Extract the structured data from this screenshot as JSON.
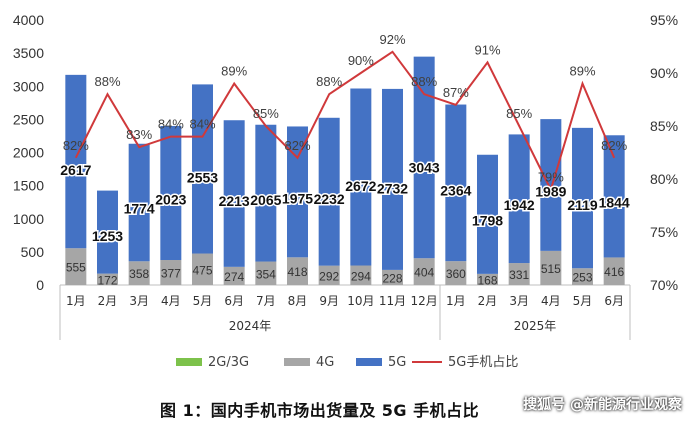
{
  "caption": "图 1：国内手机市场出货量及 5G 手机占比",
  "watermark": "搜狐号 @新能源行业观察",
  "chart_data": {
    "type": "bar",
    "categories": [
      "1月",
      "2月",
      "3月",
      "4月",
      "5月",
      "6月",
      "7月",
      "8月",
      "9月",
      "10月",
      "11月",
      "12月",
      "1月",
      "2月",
      "3月",
      "4月",
      "5月",
      "6月"
    ],
    "year_groups": [
      {
        "label": "2024年",
        "start": 0,
        "end": 11
      },
      {
        "label": "2025年",
        "start": 12,
        "end": 17
      }
    ],
    "series": [
      {
        "name": "2G/3G",
        "type": "bar",
        "color": "#7dc24b",
        "values": [
          0,
          0,
          0,
          0,
          0,
          0,
          0,
          0,
          0,
          0,
          0,
          0,
          0,
          0,
          0,
          0,
          0,
          0
        ]
      },
      {
        "name": "4G",
        "type": "bar",
        "color": "#a6a6a6",
        "values": [
          555,
          172,
          358,
          377,
          475,
          274,
          354,
          418,
          292,
          294,
          228,
          404,
          360,
          168,
          331,
          515,
          253,
          416
        ]
      },
      {
        "name": "5G",
        "type": "bar",
        "color": "#4472c4",
        "values": [
          2617,
          1253,
          1774,
          2023,
          2553,
          2213,
          2065,
          1975,
          2232,
          2672,
          2732,
          3043,
          2364,
          1798,
          1942,
          1989,
          2119,
          1844
        ]
      },
      {
        "name": "5G手机占比",
        "type": "line",
        "color": "#d0393b",
        "axis": "right",
        "values": [
          82,
          88,
          83,
          84,
          84,
          89,
          85,
          82,
          88,
          90,
          92,
          88,
          87,
          91,
          85,
          79,
          89,
          82
        ],
        "labels": [
          "82%",
          "88%",
          "83%",
          "84%",
          "84%",
          "89%",
          "85%",
          "82%",
          "88%",
          "90%",
          "92%",
          "88%",
          "87%",
          "91%",
          "85%",
          "79%",
          "89%",
          "82%"
        ]
      }
    ],
    "y_left": {
      "min": 0,
      "max": 4000,
      "ticks": [
        0,
        500,
        1000,
        1500,
        2000,
        2500,
        3000,
        3500,
        4000
      ],
      "tick_labels": [
        "0",
        "500",
        "1000",
        "1500",
        "2000",
        "2500",
        "3000",
        "3500",
        "4000"
      ]
    },
    "y_right": {
      "min": 70,
      "max": 95,
      "ticks": [
        70,
        75,
        80,
        85,
        90,
        95
      ],
      "tick_labels": [
        "70%",
        "75%",
        "80%",
        "85%",
        "90%",
        "95%"
      ]
    },
    "grid": false,
    "legend_position": "bottom"
  }
}
